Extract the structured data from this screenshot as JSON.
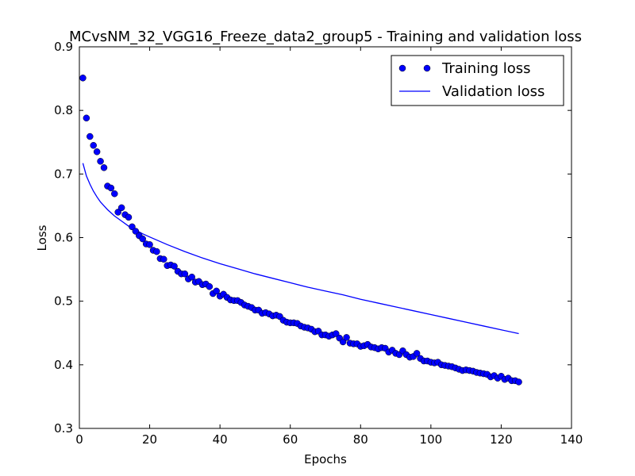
{
  "chart_data": {
    "type": "line",
    "title": "MCvsNM_32_VGG16_Freeze_data2_group5 - Training and validation loss",
    "xlabel": "Epochs",
    "ylabel": "Loss",
    "xlim": [
      0,
      140
    ],
    "ylim": [
      0.3,
      0.9
    ],
    "xticks": [
      "0",
      "20",
      "40",
      "60",
      "80",
      "100",
      "120",
      "140"
    ],
    "yticks": [
      "0.3",
      "0.4",
      "0.5",
      "0.6",
      "0.7",
      "0.8",
      "0.9"
    ],
    "grid": false,
    "legend_position": "top-right",
    "colors": {
      "training": "#0000ff",
      "validation": "#0000ff"
    },
    "series": [
      {
        "name": "Training loss",
        "style": "markers",
        "x": [
          1,
          2,
          3,
          4,
          5,
          6,
          7,
          8,
          9,
          10,
          11,
          12,
          13,
          14,
          15,
          16,
          17,
          18,
          19,
          20,
          21,
          22,
          23,
          24,
          25,
          26,
          27,
          28,
          29,
          30,
          31,
          32,
          33,
          34,
          35,
          36,
          37,
          38,
          39,
          40,
          41,
          42,
          43,
          44,
          45,
          46,
          47,
          48,
          49,
          50,
          51,
          52,
          53,
          54,
          55,
          56,
          57,
          58,
          59,
          60,
          61,
          62,
          63,
          64,
          65,
          66,
          67,
          68,
          69,
          70,
          71,
          72,
          73,
          74,
          75,
          76,
          77,
          78,
          79,
          80,
          81,
          82,
          83,
          84,
          85,
          86,
          87,
          88,
          89,
          90,
          91,
          92,
          93,
          94,
          95,
          96,
          97,
          98,
          99,
          100,
          101,
          102,
          103,
          104,
          105,
          106,
          107,
          108,
          109,
          110,
          111,
          112,
          113,
          114,
          115,
          116,
          117,
          118,
          119,
          120,
          121,
          122,
          123,
          124,
          125
        ],
        "values": [
          0.851,
          0.788,
          0.759,
          0.745,
          0.735,
          0.72,
          0.71,
          0.681,
          0.678,
          0.669,
          0.64,
          0.647,
          0.636,
          0.632,
          0.617,
          0.61,
          0.603,
          0.598,
          0.59,
          0.589,
          0.58,
          0.578,
          0.567,
          0.566,
          0.556,
          0.557,
          0.555,
          0.547,
          0.543,
          0.543,
          0.535,
          0.538,
          0.53,
          0.531,
          0.526,
          0.527,
          0.523,
          0.512,
          0.516,
          0.508,
          0.511,
          0.506,
          0.502,
          0.501,
          0.501,
          0.498,
          0.494,
          0.492,
          0.49,
          0.486,
          0.486,
          0.481,
          0.482,
          0.48,
          0.477,
          0.478,
          0.476,
          0.47,
          0.467,
          0.466,
          0.466,
          0.465,
          0.461,
          0.459,
          0.458,
          0.456,
          0.452,
          0.453,
          0.447,
          0.447,
          0.445,
          0.447,
          0.449,
          0.442,
          0.436,
          0.443,
          0.434,
          0.433,
          0.433,
          0.429,
          0.43,
          0.432,
          0.428,
          0.427,
          0.425,
          0.427,
          0.426,
          0.42,
          0.423,
          0.418,
          0.416,
          0.422,
          0.416,
          0.412,
          0.413,
          0.418,
          0.41,
          0.406,
          0.406,
          0.404,
          0.403,
          0.404,
          0.4,
          0.399,
          0.398,
          0.397,
          0.395,
          0.393,
          0.391,
          0.392,
          0.391,
          0.39,
          0.388,
          0.387,
          0.386,
          0.385,
          0.381,
          0.383,
          0.379,
          0.382,
          0.377,
          0.379,
          0.375,
          0.375,
          0.373
        ]
      },
      {
        "name": "Validation loss",
        "style": "line",
        "x": [
          1,
          2,
          3,
          4,
          5,
          6,
          7,
          8,
          9,
          10,
          12,
          14,
          16,
          18,
          20,
          25,
          30,
          35,
          40,
          45,
          50,
          55,
          60,
          65,
          70,
          75,
          80,
          85,
          90,
          95,
          100,
          105,
          110,
          115,
          120,
          125
        ],
        "values": [
          0.717,
          0.697,
          0.684,
          0.673,
          0.664,
          0.656,
          0.65,
          0.644,
          0.639,
          0.634,
          0.626,
          0.618,
          0.612,
          0.606,
          0.601,
          0.589,
          0.578,
          0.568,
          0.559,
          0.551,
          0.543,
          0.536,
          0.529,
          0.522,
          0.516,
          0.51,
          0.503,
          0.497,
          0.491,
          0.485,
          0.479,
          0.473,
          0.467,
          0.461,
          0.455,
          0.449
        ]
      }
    ]
  }
}
